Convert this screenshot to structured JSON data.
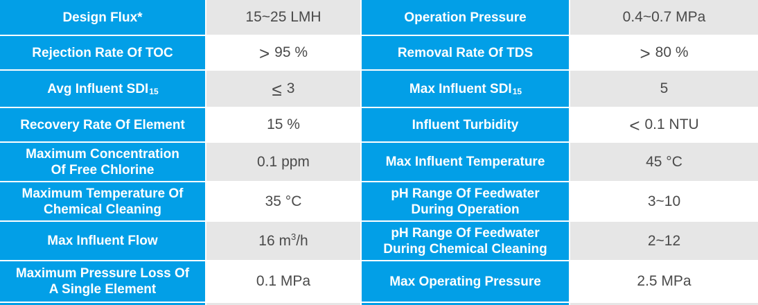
{
  "colors": {
    "accent_blue": "#029FE7",
    "row_shade": "#E6E6E6",
    "value_text": "#4A4A4A",
    "label_text": "#FFFFFF",
    "background": "#FFFFFF"
  },
  "table": {
    "rows": [
      {
        "left": {
          "label": "Design Flux*",
          "value": "15~25 LMH"
        },
        "right": {
          "label": "Operation Pressure",
          "value": "0.4~0.7 MPa"
        }
      },
      {
        "left": {
          "label": "Rejection Rate Of TOC",
          "value": [
            {
              "t": "sym",
              "v": ">"
            },
            {
              "t": "text",
              "v": "95 %"
            }
          ]
        },
        "right": {
          "label": "Removal Rate Of TDS",
          "value": [
            {
              "t": "sym",
              "v": ">"
            },
            {
              "t": "text",
              "v": "80 %"
            }
          ]
        }
      },
      {
        "left": {
          "label": [
            {
              "t": "text",
              "v": "Avg Influent SDI"
            },
            {
              "t": "sub",
              "v": "15"
            }
          ],
          "value": [
            {
              "t": "sym",
              "v": "≤"
            },
            {
              "t": "text",
              "v": "3"
            }
          ]
        },
        "right": {
          "label": [
            {
              "t": "text",
              "v": "Max Influent SDI"
            },
            {
              "t": "sub",
              "v": "15"
            }
          ],
          "value": "5"
        }
      },
      {
        "left": {
          "label": "Recovery Rate Of Element",
          "value": "15 %"
        },
        "right": {
          "label": "Influent Turbidity",
          "value": [
            {
              "t": "sym",
              "v": "<"
            },
            {
              "t": "text",
              "v": "0.1 NTU"
            }
          ]
        }
      },
      {
        "left": {
          "label": "Maximum Concentration\nOf Free Chlorine",
          "value": "0.1 ppm"
        },
        "right": {
          "label": "Max Influent Temperature",
          "value": "45 °C"
        }
      },
      {
        "left": {
          "label": "Maximum Temperature Of\nChemical Cleaning",
          "value": "35 °C"
        },
        "right": {
          "label": "pH Range Of Feedwater\nDuring Operation",
          "value": "3~10"
        }
      },
      {
        "left": {
          "label": "Max Influent Flow",
          "value": [
            {
              "t": "text",
              "v": "16 m"
            },
            {
              "t": "sup",
              "v": "3"
            },
            {
              "t": "text",
              "v": "/h"
            }
          ]
        },
        "right": {
          "label": "pH Range Of Feedwater\nDuring Chemical Cleaning",
          "value": "2~12"
        }
      },
      {
        "left": {
          "label": "Maximum Pressure Loss Of\nA Single Element",
          "value": "0.1 MPa"
        },
        "right": {
          "label": "Max Operating Pressure",
          "value": "2.5 MPa"
        }
      }
    ]
  }
}
